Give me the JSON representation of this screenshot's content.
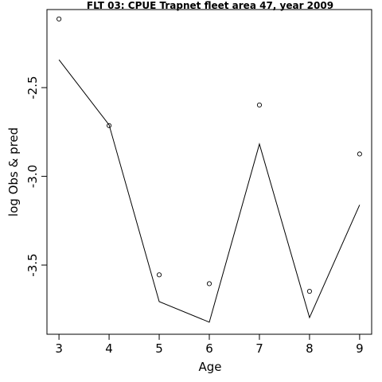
{
  "chart_data": {
    "type": "line",
    "title": "FLT 03: CPUE Trapnet fleet area 47, year 2009",
    "xlabel": "Age",
    "ylabel": "log Obs & pred",
    "x": [
      3,
      4,
      5,
      6,
      7,
      8,
      9
    ],
    "x_ticks": [
      "3",
      "4",
      "5",
      "6",
      "7",
      "8",
      "9"
    ],
    "y_ticks": [
      -3.5,
      -3.0,
      -2.5
    ],
    "y_tick_labels": [
      "-3.5",
      "-3.0",
      "-2.5"
    ],
    "xlim": [
      2.76,
      9.24
    ],
    "ylim": [
      -3.89,
      -2.06
    ],
    "series": [
      {
        "kind": "points",
        "marker": "open-circle",
        "values": [
          -2.113,
          -2.714,
          -3.555,
          -3.605,
          -2.598,
          -3.648,
          -2.874
        ]
      },
      {
        "kind": "line",
        "values": [
          -2.343,
          -2.71,
          -3.706,
          -3.822,
          -2.818,
          -3.796,
          -3.161
        ]
      }
    ],
    "grid": false,
    "legend": "none"
  }
}
